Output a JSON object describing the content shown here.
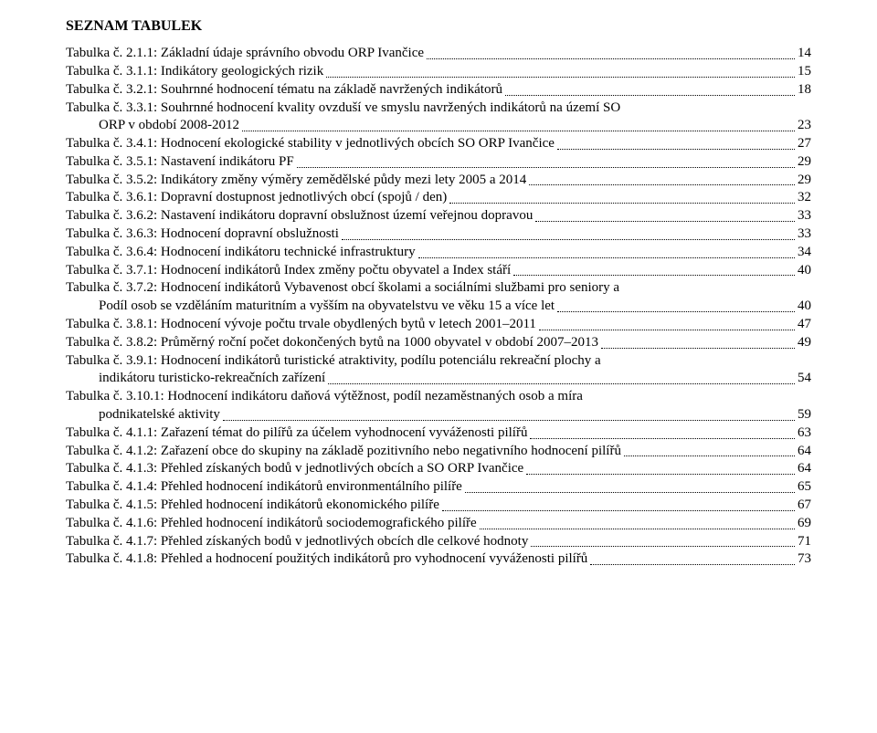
{
  "heading": "SEZNAM TABULEK",
  "entries": [
    {
      "label": "Tabulka č. 2.1.1: Základní údaje správního obvodu ORP Ivančice",
      "page": "14"
    },
    {
      "label": "Tabulka č. 3.1.1: Indikátory geologických rizik",
      "page": "15"
    },
    {
      "label": "Tabulka č. 3.2.1: Souhrnné hodnocení tématu na základě navržených indikátorů",
      "page": "18"
    },
    {
      "labelLines": [
        "Tabulka č. 3.3.1: Souhrnné hodnocení kvality ovzduší ve smyslu navržených indikátorů na území SO",
        "ORP v období 2008-2012"
      ],
      "page": "23"
    },
    {
      "label": "Tabulka č. 3.4.1: Hodnocení ekologické stability v jednotlivých obcích SO ORP Ivančice",
      "page": "27"
    },
    {
      "label": "Tabulka č. 3.5.1: Nastavení indikátoru PF",
      "page": "29"
    },
    {
      "label": "Tabulka č. 3.5.2: Indikátory změny výměry zemědělské půdy mezi lety 2005 a 2014",
      "page": "29"
    },
    {
      "label": "Tabulka č. 3.6.1: Dopravní dostupnost jednotlivých obcí (spojů / den)",
      "page": "32"
    },
    {
      "label": "Tabulka č. 3.6.2: Nastavení indikátoru dopravní obslužnost území veřejnou dopravou",
      "page": "33"
    },
    {
      "label": "Tabulka č. 3.6.3: Hodnocení dopravní obslužnosti",
      "page": "33"
    },
    {
      "label": "Tabulka č. 3.6.4: Hodnocení indikátoru technické infrastruktury",
      "page": "34"
    },
    {
      "label": "Tabulka č. 3.7.1: Hodnocení indikátorů Index změny počtu obyvatel a Index stáří",
      "page": "40"
    },
    {
      "labelLines": [
        "Tabulka č. 3.7.2: Hodnocení indikátorů Vybavenost obcí školami a sociálními službami pro seniory a",
        "Podíl osob se vzděláním maturitním a vyšším na obyvatelstvu ve věku 15 a více let"
      ],
      "page": "40"
    },
    {
      "label": "Tabulka č. 3.8.1: Hodnocení vývoje počtu trvale obydlených bytů v letech 2001–2011",
      "page": "47"
    },
    {
      "label": "Tabulka č. 3.8.2: Průměrný roční počet dokončených bytů na 1000 obyvatel v období 2007–2013",
      "page": "49"
    },
    {
      "labelLines": [
        "Tabulka č. 3.9.1: Hodnocení indikátorů turistické atraktivity, podílu potenciálu rekreační plochy a",
        "indikátoru turisticko-rekreačních zařízení"
      ],
      "page": "54"
    },
    {
      "labelLines": [
        "Tabulka č. 3.10.1: Hodnocení indikátoru daňová výtěžnost, podíl nezaměstnaných osob a míra",
        "podnikatelské aktivity"
      ],
      "page": "59"
    },
    {
      "label": "Tabulka č. 4.1.1: Zařazení témat do pilířů za účelem vyhodnocení vyváženosti pilířů",
      "page": "63"
    },
    {
      "label": "Tabulka č. 4.1.2: Zařazení obce do skupiny na základě pozitivního nebo negativního hodnocení pilířů",
      "page": "64"
    },
    {
      "label": "Tabulka č. 4.1.3: Přehled získaných bodů v jednotlivých obcích a SO ORP Ivančice",
      "page": "64"
    },
    {
      "label": "Tabulka č. 4.1.4: Přehled hodnocení indikátorů environmentálního pilíře",
      "page": "65"
    },
    {
      "label": "Tabulka č. 4.1.5: Přehled hodnocení indikátorů ekonomického pilíře",
      "page": "67"
    },
    {
      "label": "Tabulka č. 4.1.6: Přehled hodnocení indikátorů sociodemografického pilíře",
      "page": "69"
    },
    {
      "label": "Tabulka č. 4.1.7: Přehled získaných bodů v jednotlivých obcích dle celkové hodnoty",
      "page": "71"
    },
    {
      "label": "Tabulka č. 4.1.8: Přehled a hodnocení použitých indikátorů pro vyhodnocení vyváženosti pilířů",
      "page": "73"
    }
  ]
}
